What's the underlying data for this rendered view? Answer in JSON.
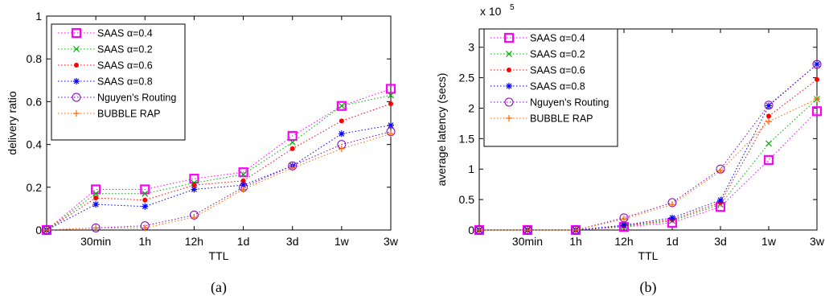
{
  "chart_data": [
    {
      "type": "line",
      "caption": "(a)",
      "title": "",
      "xlabel": "TTL",
      "ylabel": "delivery ratio",
      "categories": [
        "",
        "30min",
        "1h",
        "12h",
        "1d",
        "3d",
        "1w",
        "3w"
      ],
      "ylim": [
        0,
        1
      ],
      "yticks": [
        "0",
        "0.2",
        "0.4",
        "0.6",
        "0.8",
        "1"
      ],
      "ytick_values": [
        0,
        0.2,
        0.4,
        0.6,
        0.8,
        1
      ],
      "grid": false,
      "legend_position": "top-left",
      "series": [
        {
          "name": "SAAS  α=0.4",
          "marker": "square",
          "color": "#ff00ff",
          "values": [
            0,
            0.19,
            0.19,
            0.24,
            0.27,
            0.44,
            0.58,
            0.66
          ]
        },
        {
          "name": "SAAS  α=0.2",
          "marker": "x",
          "color": "#00b000",
          "values": [
            0,
            0.17,
            0.17,
            0.22,
            0.26,
            0.41,
            0.58,
            0.63
          ]
        },
        {
          "name": "SAAS  α=0.6",
          "marker": "dot",
          "color": "#ff0000",
          "values": [
            0,
            0.15,
            0.14,
            0.21,
            0.23,
            0.38,
            0.51,
            0.59
          ]
        },
        {
          "name": "SAAS  α=0.8",
          "marker": "star",
          "color": "#0000ff",
          "values": [
            0,
            0.12,
            0.11,
            0.19,
            0.21,
            0.3,
            0.45,
            0.49
          ]
        },
        {
          "name": "Nguyen's Routing",
          "marker": "circle",
          "color": "#8000c0",
          "values": [
            0,
            0.01,
            0.02,
            0.07,
            0.2,
            0.3,
            0.4,
            0.46
          ]
        },
        {
          "name": "BUBBLE RAP",
          "marker": "plus",
          "color": "#ff6600",
          "values": [
            0,
            0.01,
            0.01,
            0.06,
            0.19,
            0.29,
            0.38,
            0.45
          ]
        }
      ]
    },
    {
      "type": "line",
      "caption": "(b)",
      "title": "",
      "xlabel": "TTL",
      "ylabel": "average latency (secs)",
      "scale_label": "x 10",
      "scale_exponent": "5",
      "categories": [
        "",
        "30min",
        "1h",
        "12h",
        "1d",
        "3d",
        "1w",
        "3w"
      ],
      "ylim": [
        0,
        3.3
      ],
      "yticks": [
        "0",
        "0.5",
        "1",
        "1.5",
        "2",
        "2.5",
        "3"
      ],
      "ytick_values": [
        0,
        0.5,
        1,
        1.5,
        2,
        2.5,
        3
      ],
      "grid": false,
      "legend_position": "top-left",
      "series": [
        {
          "name": "SAAS  α=0.4",
          "marker": "square",
          "color": "#ff00ff",
          "values": [
            0,
            0,
            0,
            0.05,
            0.12,
            0.38,
            1.15,
            1.95
          ]
        },
        {
          "name": "SAAS  α=0.2",
          "marker": "x",
          "color": "#00b000",
          "values": [
            0,
            0,
            0,
            0.06,
            0.15,
            0.42,
            1.42,
            2.15
          ]
        },
        {
          "name": "SAAS  α=0.6",
          "marker": "dot",
          "color": "#ff0000",
          "values": [
            0,
            0,
            0,
            0.07,
            0.17,
            0.45,
            1.87,
            2.47
          ]
        },
        {
          "name": "SAAS  α=0.8",
          "marker": "star",
          "color": "#0000ff",
          "values": [
            0,
            0,
            0,
            0.08,
            0.2,
            0.49,
            2.04,
            2.72
          ]
        },
        {
          "name": "Nguyen's Routing",
          "marker": "circle",
          "color": "#8000c0",
          "values": [
            0,
            0,
            0,
            0.2,
            0.45,
            1.0,
            2.05,
            2.72
          ]
        },
        {
          "name": "BUBBLE RAP",
          "marker": "plus",
          "color": "#ff6600",
          "values": [
            0,
            0,
            0,
            0.18,
            0.42,
            0.97,
            1.78,
            2.15
          ]
        }
      ]
    }
  ]
}
